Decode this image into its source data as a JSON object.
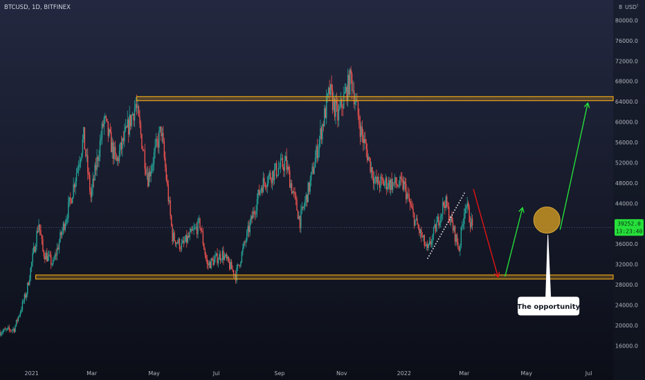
{
  "header": {
    "symbol": "BTCUSD, 1D, BITFINEX"
  },
  "price_axis": {
    "currency": "USD",
    "scale_mode_glyph": "8",
    "lock_glyph": "!"
  },
  "last_price": {
    "value": "39252.0",
    "countdown": "13:23:40"
  },
  "annotation": {
    "text": "The opportunity"
  },
  "colors": {
    "background_top": "#232840",
    "background_bottom": "#0b0e17",
    "up": "#26a69a",
    "down": "#ef5350",
    "zone": "#e7a31b",
    "arrow_up": "#26e03a",
    "arrow_down": "#e51414",
    "circle": "#b88a24",
    "badge": "#26e03a"
  },
  "chart_data": {
    "type": "candlestick",
    "y_ticks": [
      16000,
      20000,
      24000,
      28000,
      32000,
      36000,
      40000,
      44000,
      48000,
      52000,
      56000,
      60000,
      64000,
      68000,
      72000,
      76000,
      80000
    ],
    "y_tick_labels": [
      "16000.0",
      "20000.0",
      "24000.0",
      "28000.0",
      "32000.0",
      "36000.0",
      "40000.0",
      "44000.0",
      "48000.0",
      "52000.0",
      "56000.0",
      "60000.0",
      "64000.0",
      "68000.0",
      "72000.0",
      "76000.0",
      "80000.0"
    ],
    "ylim": [
      12500,
      84000
    ],
    "xlim": [
      "2020-12-01",
      "2022-07-25"
    ],
    "x_ticks": [
      {
        "date": "2021-01-01",
        "label": "2021"
      },
      {
        "date": "2021-03-01",
        "label": "Mar"
      },
      {
        "date": "2021-05-01",
        "label": "May"
      },
      {
        "date": "2021-07-01",
        "label": "Jul"
      },
      {
        "date": "2021-09-01",
        "label": "Sep"
      },
      {
        "date": "2021-11-01",
        "label": "Nov"
      },
      {
        "date": "2022-01-01",
        "label": "2022"
      },
      {
        "date": "2022-03-01",
        "label": "Mar"
      },
      {
        "date": "2022-05-01",
        "label": "May"
      },
      {
        "date": "2022-07-01",
        "label": "Jul"
      }
    ],
    "price_anchors": [
      [
        "2020-12-01",
        18700
      ],
      [
        "2020-12-15",
        19300
      ],
      [
        "2020-12-27",
        26500
      ],
      [
        "2021-01-08",
        40200
      ],
      [
        "2021-01-12",
        34500
      ],
      [
        "2021-01-22",
        32000
      ],
      [
        "2021-02-08",
        44500
      ],
      [
        "2021-02-21",
        57000
      ],
      [
        "2021-02-28",
        45200
      ],
      [
        "2021-03-13",
        60500
      ],
      [
        "2021-03-25",
        52000
      ],
      [
        "2021-04-13",
        63500
      ],
      [
        "2021-04-25",
        49000
      ],
      [
        "2021-05-08",
        58500
      ],
      [
        "2021-05-19",
        37500
      ],
      [
        "2021-05-28",
        35500
      ],
      [
        "2021-06-15",
        40000
      ],
      [
        "2021-06-22",
        31800
      ],
      [
        "2021-07-07",
        34000
      ],
      [
        "2021-07-20",
        29800
      ],
      [
        "2021-08-14",
        47500
      ],
      [
        "2021-08-20",
        49000
      ],
      [
        "2021-09-07",
        52000
      ],
      [
        "2021-09-21",
        40500
      ],
      [
        "2021-10-01",
        48000
      ],
      [
        "2021-10-20",
        66000
      ],
      [
        "2021-10-28",
        61000
      ],
      [
        "2021-11-10",
        68800
      ],
      [
        "2021-11-20",
        58000
      ],
      [
        "2021-12-04",
        48000
      ],
      [
        "2021-12-15",
        48000
      ],
      [
        "2022-01-01",
        47500
      ],
      [
        "2022-01-10",
        41500
      ],
      [
        "2022-01-24",
        34500
      ],
      [
        "2022-02-10",
        44500
      ],
      [
        "2022-02-24",
        35000
      ],
      [
        "2022-03-02",
        44200
      ],
      [
        "2022-03-09",
        39252
      ]
    ],
    "zones": [
      {
        "from": "2021-04-14",
        "to": "2022-07-25",
        "low": 64200,
        "high": 65000
      },
      {
        "from": "2021-01-05",
        "to": "2022-07-25",
        "low": 29100,
        "high": 29900
      }
    ],
    "last_price_level": 39252,
    "trendline": {
      "from": [
        "2022-01-24",
        33100
      ],
      "to": [
        "2022-03-02",
        46300
      ]
    },
    "arrows": [
      {
        "dir": "down",
        "from": [
          "2022-03-10",
          46800
        ],
        "to": [
          "2022-04-03",
          29600
        ]
      },
      {
        "dir": "up",
        "from": [
          "2022-04-10",
          29600
        ],
        "to": [
          "2022-04-27",
          43000
        ]
      },
      {
        "dir": "up",
        "from": [
          "2022-06-03",
          38800
        ],
        "to": [
          "2022-06-30",
          63600
        ]
      }
    ],
    "circle": {
      "date": "2022-05-21",
      "price": 40700
    },
    "callout_anchor": {
      "date": "2022-05-22",
      "price": 37800
    }
  }
}
